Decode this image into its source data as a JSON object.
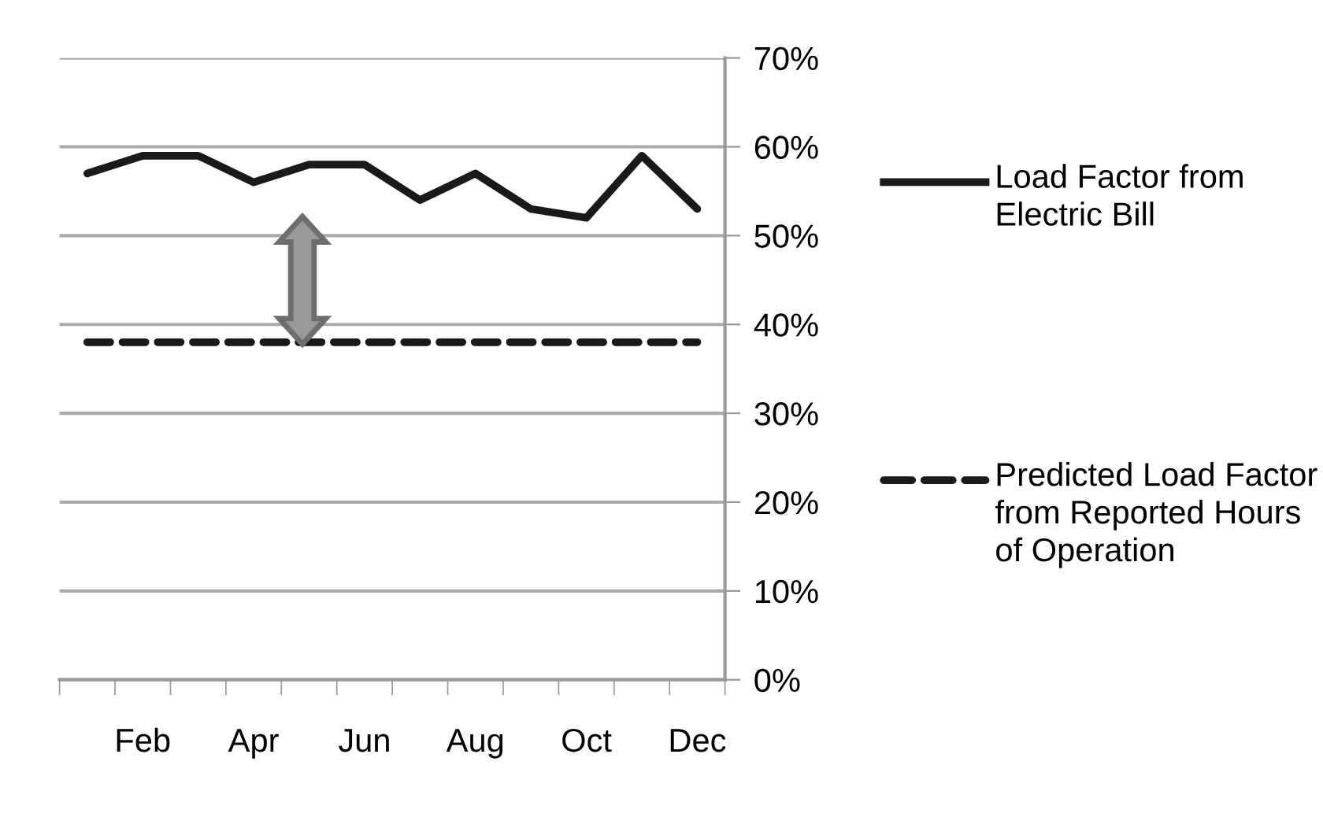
{
  "chart_data": {
    "type": "line",
    "categories": [
      null,
      "Feb",
      null,
      "Apr",
      null,
      "Jun",
      null,
      "Aug",
      null,
      "Oct",
      null,
      "Dec"
    ],
    "series": [
      {
        "name": "Load Factor from Electric Bill",
        "color": "#1a1a1a",
        "line_style": "solid",
        "values": [
          57,
          59,
          59,
          56,
          58,
          58,
          54,
          57,
          53,
          52,
          59,
          53
        ]
      },
      {
        "name": "Predicted Load Factor from Reported Hours of Operation",
        "color": "#1a1a1a",
        "line_style": "dashed",
        "values": [
          38,
          38,
          38,
          38,
          38,
          38,
          38,
          38,
          38,
          38,
          38,
          38
        ]
      }
    ],
    "ylim": [
      0,
      70
    ],
    "yticks": [
      {
        "value": 0,
        "label": "0%"
      },
      {
        "value": 10,
        "label": "10%"
      },
      {
        "value": 20,
        "label": "20%"
      },
      {
        "value": 30,
        "label": "30%"
      },
      {
        "value": 40,
        "label": "40%"
      },
      {
        "value": 50,
        "label": "50%"
      },
      {
        "value": 60,
        "label": "60%"
      },
      {
        "value": 70,
        "label": "70%"
      }
    ],
    "grid": "y",
    "legend": "right",
    "marker": "none"
  }
}
